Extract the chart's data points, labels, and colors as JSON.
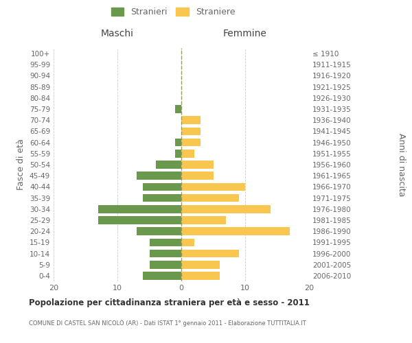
{
  "age_groups": [
    "0-4",
    "5-9",
    "10-14",
    "15-19",
    "20-24",
    "25-29",
    "30-34",
    "35-39",
    "40-44",
    "45-49",
    "50-54",
    "55-59",
    "60-64",
    "65-69",
    "70-74",
    "75-79",
    "80-84",
    "85-89",
    "90-94",
    "95-99",
    "100+"
  ],
  "birth_years": [
    "2006-2010",
    "2001-2005",
    "1996-2000",
    "1991-1995",
    "1986-1990",
    "1981-1985",
    "1976-1980",
    "1971-1975",
    "1966-1970",
    "1961-1965",
    "1956-1960",
    "1951-1955",
    "1946-1950",
    "1941-1945",
    "1936-1940",
    "1931-1935",
    "1926-1930",
    "1921-1925",
    "1916-1920",
    "1911-1915",
    "≤ 1910"
  ],
  "males": [
    6,
    5,
    5,
    5,
    7,
    13,
    13,
    6,
    6,
    7,
    4,
    1,
    1,
    0,
    0,
    1,
    0,
    0,
    0,
    0,
    0
  ],
  "females": [
    6,
    6,
    9,
    2,
    17,
    7,
    14,
    9,
    10,
    5,
    5,
    2,
    3,
    3,
    3,
    0,
    0,
    0,
    0,
    0,
    0
  ],
  "male_color": "#6a994e",
  "female_color": "#f9c74f",
  "title": "Popolazione per cittadinanza straniera per età e sesso - 2011",
  "subtitle": "COMUNE DI CASTEL SAN NICOLÒ (AR) - Dati ISTAT 1° gennaio 2011 - Elaborazione TUTTITALIA.IT",
  "ylabel_left": "Fasce di età",
  "ylabel_right": "Anni di nascita",
  "xlabel_left": "Maschi",
  "xlabel_right": "Femmine",
  "legend_stranieri": "Stranieri",
  "legend_straniere": "Straniere",
  "xlim": 20,
  "background_color": "#ffffff",
  "grid_color": "#cccccc",
  "text_color": "#666666",
  "dashed_line_color": "#999966"
}
